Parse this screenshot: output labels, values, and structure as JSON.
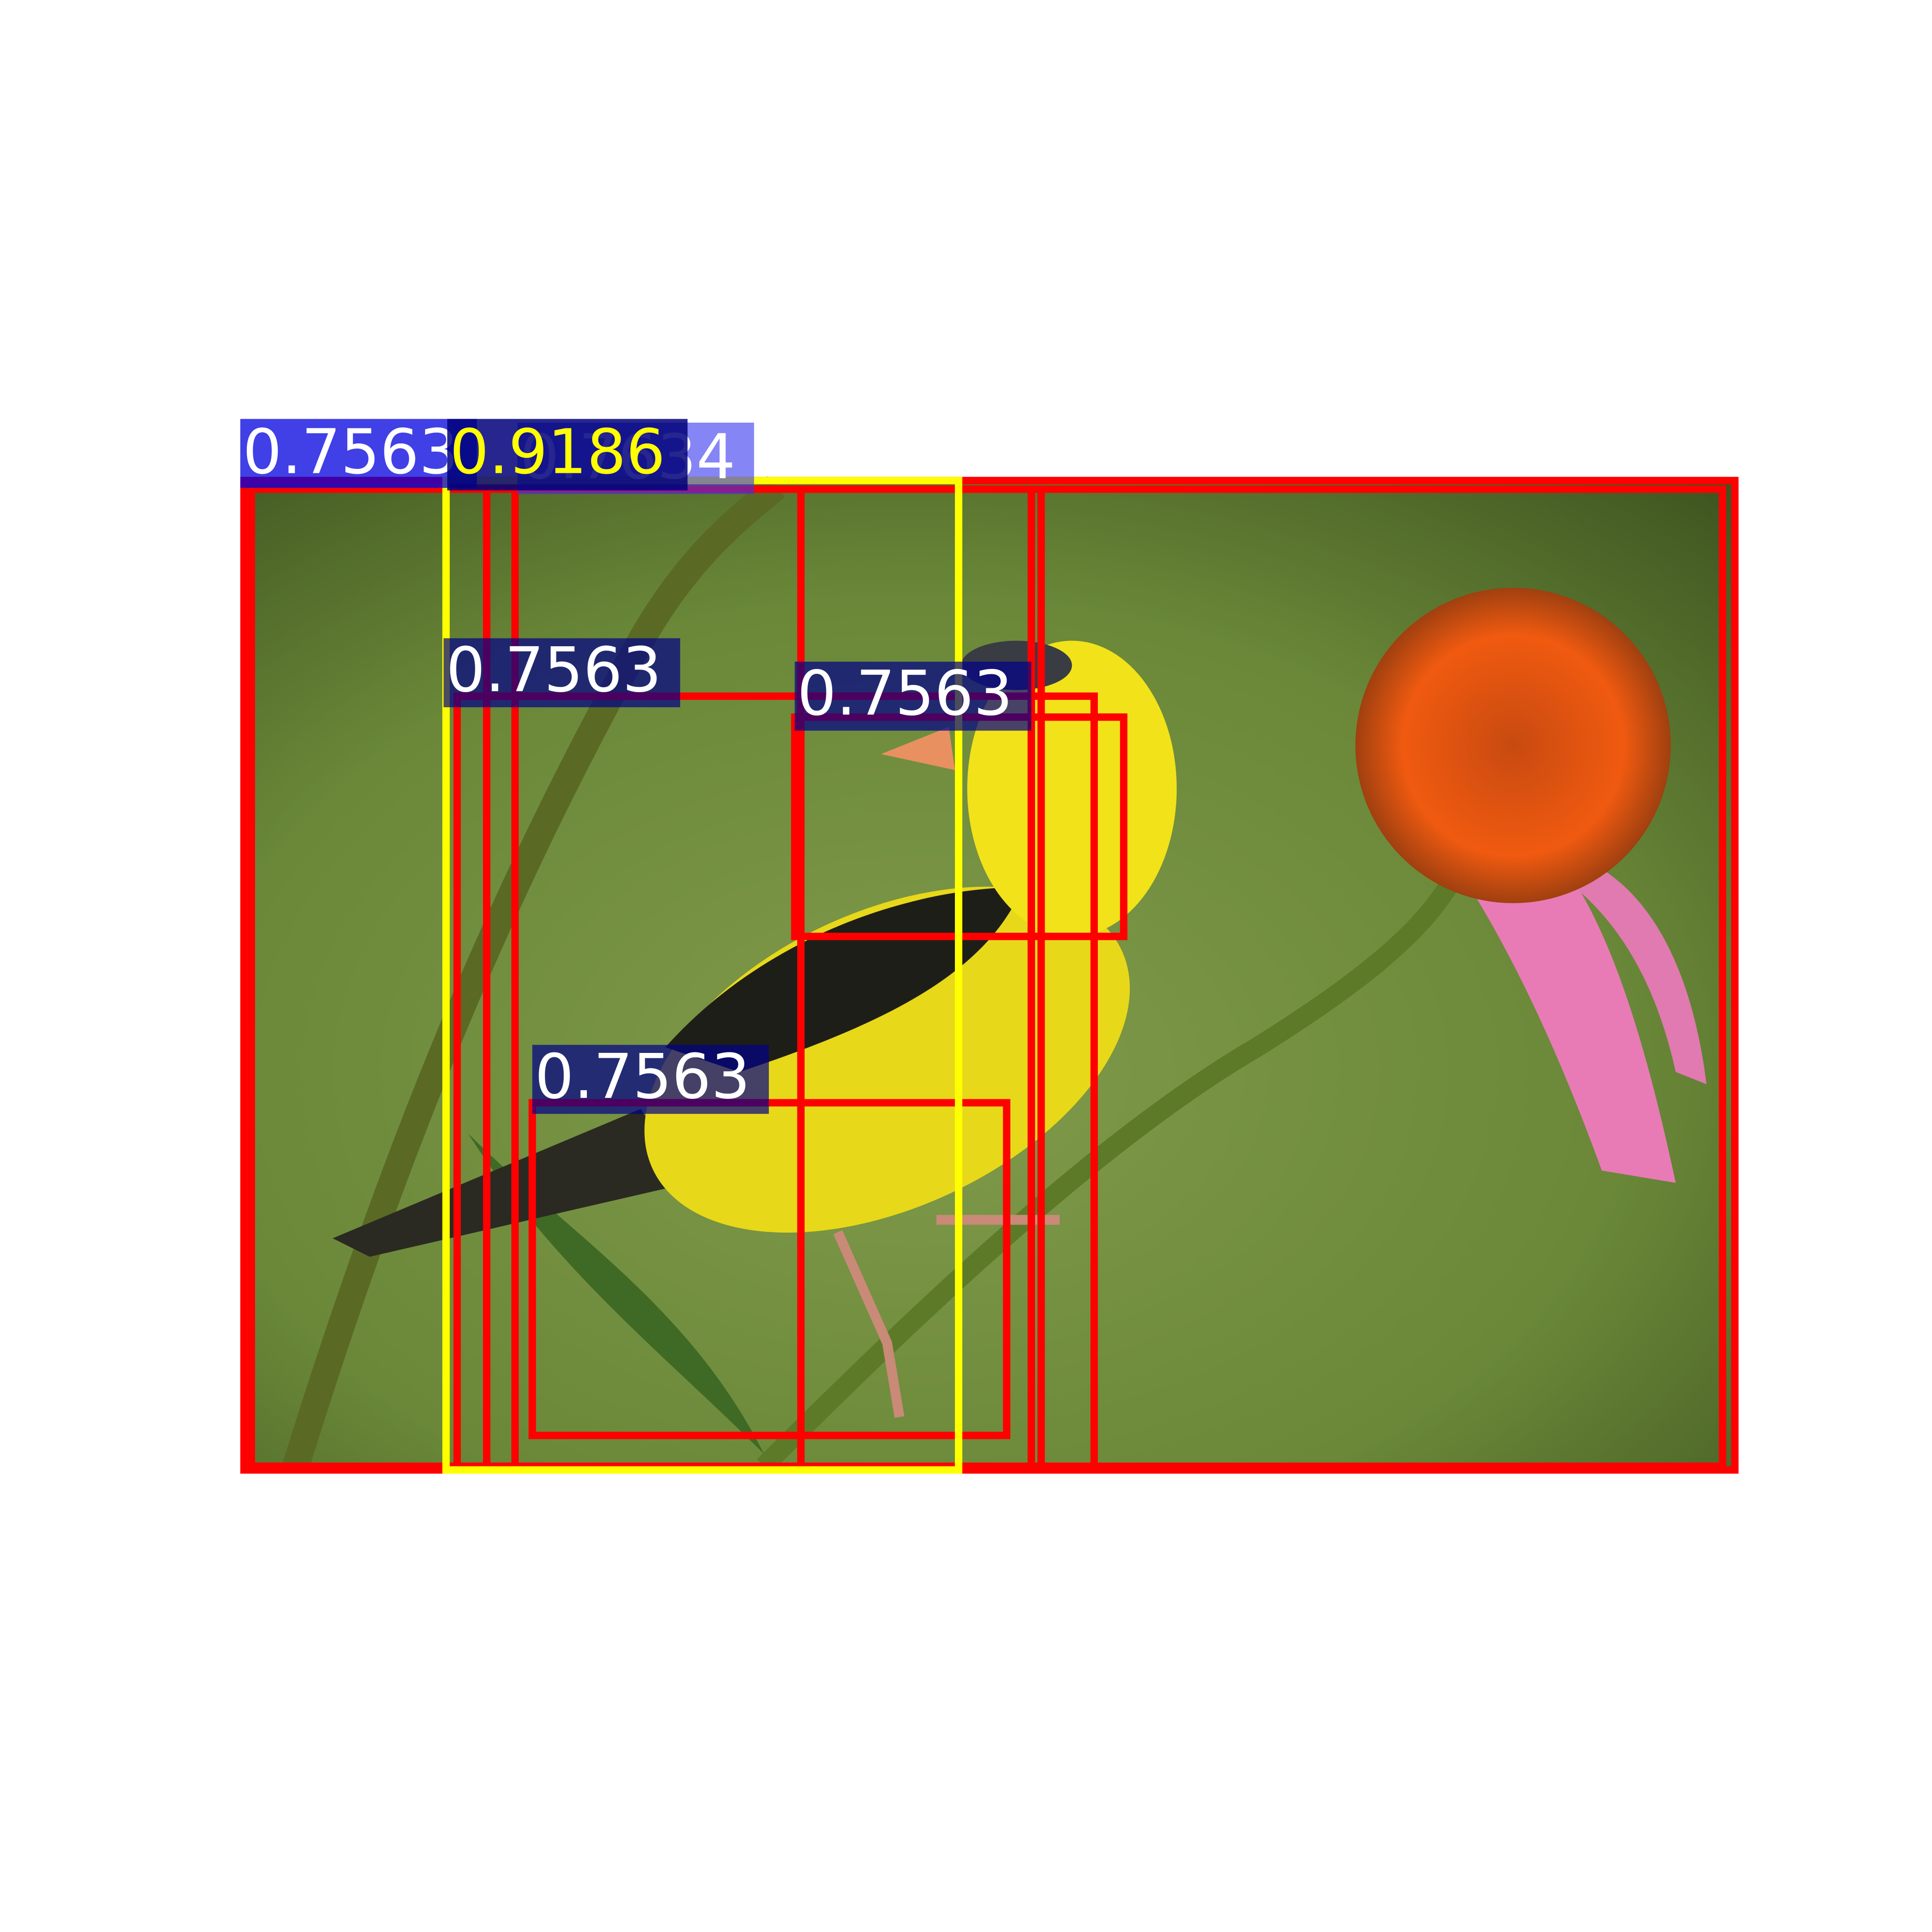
{
  "detections": [
    {
      "label": "0.7563"
    },
    {
      "label": "0.7634"
    },
    {
      "label": "0.9186"
    },
    {
      "label": "0.7563"
    },
    {
      "label": "0.7563"
    },
    {
      "label": "0.7563"
    }
  ]
}
